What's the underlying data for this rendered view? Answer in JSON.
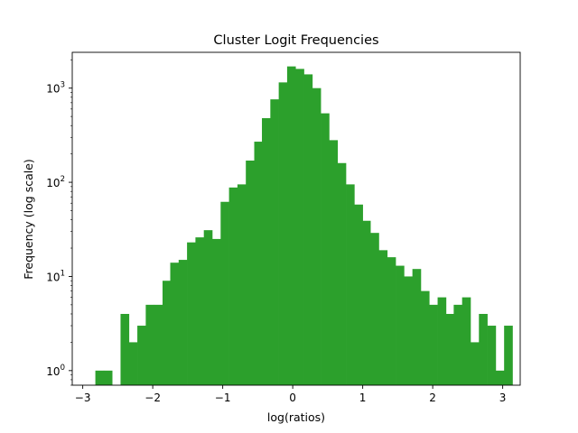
{
  "chart_data": {
    "type": "bar",
    "title": "Cluster Logit Frequencies",
    "xlabel": "log(ratios)",
    "ylabel": "Frequency (log scale)",
    "y_scale": "log",
    "xlim": [
      -3.15,
      3.25
    ],
    "ylim": [
      0.7,
      2400
    ],
    "grid": false,
    "bar_color": "#2ca02c",
    "x_ticks": [
      -3,
      -2,
      -1,
      0,
      1,
      2,
      3
    ],
    "x_tick_labels": [
      "−3",
      "−2",
      "−1",
      "0",
      "1",
      "2",
      "3"
    ],
    "y_ticks": [
      1,
      10,
      100,
      1000
    ],
    "y_tick_labels": [
      [
        "10",
        "0"
      ],
      [
        "10",
        "1"
      ],
      [
        "10",
        "2"
      ],
      [
        "10",
        "3"
      ]
    ],
    "bin_width": 0.1191,
    "bins": [
      {
        "x0": -2.82,
        "value": 1
      },
      {
        "x0": -2.7,
        "value": 1
      },
      {
        "x0": -2.58,
        "value": 0
      },
      {
        "x0": -2.46,
        "value": 4
      },
      {
        "x0": -2.34,
        "value": 2
      },
      {
        "x0": -2.22,
        "value": 3
      },
      {
        "x0": -2.1,
        "value": 5
      },
      {
        "x0": -1.98,
        "value": 5
      },
      {
        "x0": -1.86,
        "value": 9
      },
      {
        "x0": -1.75,
        "value": 14
      },
      {
        "x0": -1.63,
        "value": 15
      },
      {
        "x0": -1.51,
        "value": 23
      },
      {
        "x0": -1.39,
        "value": 26
      },
      {
        "x0": -1.27,
        "value": 31
      },
      {
        "x0": -1.15,
        "value": 25
      },
      {
        "x0": -1.03,
        "value": 62
      },
      {
        "x0": -0.91,
        "value": 88
      },
      {
        "x0": -0.79,
        "value": 95
      },
      {
        "x0": -0.67,
        "value": 170
      },
      {
        "x0": -0.55,
        "value": 270
      },
      {
        "x0": -0.44,
        "value": 480
      },
      {
        "x0": -0.32,
        "value": 760
      },
      {
        "x0": -0.2,
        "value": 1150
      },
      {
        "x0": -0.08,
        "value": 1700
      },
      {
        "x0": 0.04,
        "value": 1600
      },
      {
        "x0": 0.16,
        "value": 1400
      },
      {
        "x0": 0.28,
        "value": 1000
      },
      {
        "x0": 0.4,
        "value": 540
      },
      {
        "x0": 0.52,
        "value": 280
      },
      {
        "x0": 0.64,
        "value": 160
      },
      {
        "x0": 0.76,
        "value": 95
      },
      {
        "x0": 0.88,
        "value": 58
      },
      {
        "x0": 0.99,
        "value": 39
      },
      {
        "x0": 1.11,
        "value": 29
      },
      {
        "x0": 1.23,
        "value": 19
      },
      {
        "x0": 1.35,
        "value": 16
      },
      {
        "x0": 1.47,
        "value": 13
      },
      {
        "x0": 1.59,
        "value": 10
      },
      {
        "x0": 1.71,
        "value": 12
      },
      {
        "x0": 1.83,
        "value": 7
      },
      {
        "x0": 1.95,
        "value": 5
      },
      {
        "x0": 2.07,
        "value": 6
      },
      {
        "x0": 2.18,
        "value": 4
      },
      {
        "x0": 2.3,
        "value": 5
      },
      {
        "x0": 2.42,
        "value": 6
      },
      {
        "x0": 2.54,
        "value": 2
      },
      {
        "x0": 2.66,
        "value": 4
      },
      {
        "x0": 2.78,
        "value": 3
      },
      {
        "x0": 2.9,
        "value": 1
      },
      {
        "x0": 3.02,
        "value": 3
      }
    ]
  }
}
